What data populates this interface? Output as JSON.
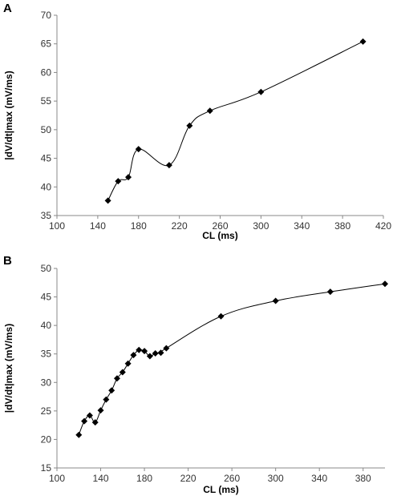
{
  "chart_data": [
    {
      "panel": "A",
      "type": "scatter",
      "smooth_line": true,
      "xlabel": "CL (ms)",
      "ylabel": "|dV/dt|max (mV/ms)",
      "xlim": [
        100,
        420
      ],
      "ylim": [
        35,
        70
      ],
      "xticks": [
        100,
        140,
        180,
        220,
        260,
        300,
        340,
        380,
        420
      ],
      "yticks": [
        35,
        40,
        45,
        50,
        55,
        60,
        65,
        70
      ],
      "grid": false,
      "marker": "diamond",
      "x": [
        150,
        160,
        170,
        180,
        210,
        230,
        250,
        300,
        400
      ],
      "y": [
        37.6,
        41.0,
        41.7,
        46.6,
        43.8,
        50.7,
        53.3,
        56.6,
        65.4
      ]
    },
    {
      "panel": "B",
      "type": "scatter",
      "smooth_line": true,
      "xlabel": "CL (ms)",
      "ylabel": "|dV/dt|max (mV/ms)",
      "xlim": [
        100,
        400
      ],
      "ylim": [
        15,
        50
      ],
      "xticks": [
        100,
        140,
        180,
        220,
        260,
        300,
        340,
        380
      ],
      "yticks": [
        15,
        20,
        25,
        30,
        35,
        40,
        45,
        50
      ],
      "grid": false,
      "marker": "diamond",
      "x": [
        120,
        125,
        130,
        135,
        140,
        145,
        150,
        155,
        160,
        165,
        170,
        175,
        180,
        185,
        190,
        195,
        200,
        250,
        300,
        350,
        400
      ],
      "y": [
        20.8,
        23.2,
        24.2,
        23.0,
        25.1,
        27.0,
        28.6,
        30.7,
        31.8,
        33.3,
        34.8,
        35.7,
        35.5,
        34.6,
        35.1,
        35.2,
        36.0,
        41.6,
        44.3,
        45.9,
        47.3
      ]
    }
  ]
}
